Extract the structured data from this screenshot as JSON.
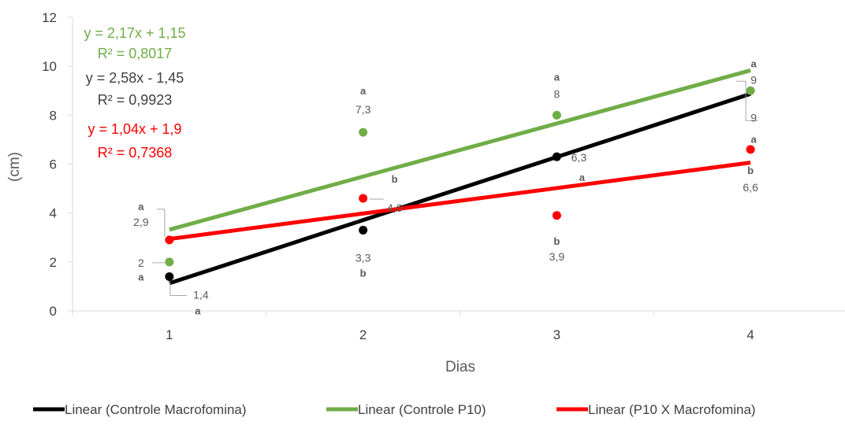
{
  "chart_data": {
    "type": "scatter",
    "xlabel": "Dias",
    "ylabel": "(cm)",
    "xlim": [
      0.5,
      4.5
    ],
    "ylim": [
      0,
      12
    ],
    "x_ticks": [
      "1",
      "2",
      "3",
      "4"
    ],
    "y_ticks": [
      "0",
      "2",
      "4",
      "6",
      "8",
      "10",
      "12"
    ],
    "legend_position": "bottom",
    "series": [
      {
        "key": "macro",
        "color": "#000000",
        "x": [
          1,
          2,
          3,
          4
        ],
        "values": [
          1.4,
          3.3,
          6.3,
          8.9
        ],
        "trend": {
          "slope": 2.58,
          "intercept": -1.45,
          "legend": "Linear (Controle Macrofomina)",
          "equation": "y = 2,58x - 1,45",
          "r2": "R² = 0,9923",
          "eq_color": "#404040"
        },
        "value_labels": [
          "1,4",
          "3,3",
          "6,3",
          ""
        ],
        "letters": [
          "a",
          "b",
          "",
          ""
        ]
      },
      {
        "key": "p10",
        "color": "#70AD47",
        "x": [
          1,
          2,
          3,
          4
        ],
        "values": [
          2,
          7.3,
          8,
          9
        ],
        "trend": {
          "slope": 2.17,
          "intercept": 1.15,
          "legend": "Linear (Controle P10)",
          "equation": "y = 2,17x + 1,15",
          "r2": "R² = 0,8017",
          "eq_color": "#70AD47"
        },
        "value_labels": [
          "2",
          "7,3",
          "8",
          "9"
        ],
        "letters": [
          "a",
          "a",
          "a",
          "a"
        ]
      },
      {
        "key": "p10macro",
        "color": "#FF0000",
        "x": [
          1,
          2,
          3,
          4
        ],
        "values": [
          2.9,
          4.6,
          3.9,
          6.6
        ],
        "trend": {
          "slope": 1.04,
          "intercept": 1.9,
          "legend": "Linear (P10 X Macrofomina)",
          "equation": "y = 1,04x + 1,9",
          "r2": "R² = 0,7368",
          "eq_color": "#FF0000"
        },
        "value_labels": [
          "2,9",
          "4,6",
          "3,9",
          "6,6"
        ],
        "letters": [
          "a",
          "b",
          "b",
          "b"
        ]
      }
    ],
    "extra_labels": [
      {
        "text": "9",
        "bold": false
      },
      {
        "text": "a",
        "bold": true
      },
      {
        "text": "a",
        "bold": true
      },
      {
        "text": "a",
        "bold": true
      }
    ]
  }
}
